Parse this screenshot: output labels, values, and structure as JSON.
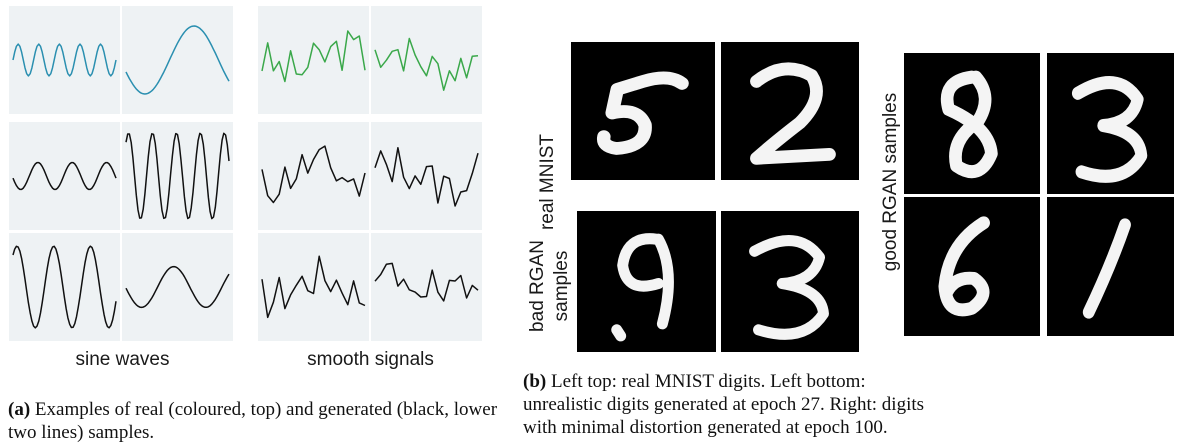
{
  "figure_a": {
    "group_labels": [
      "sine waves",
      "smooth signals"
    ],
    "colors": {
      "sine_real": "#2a8fb0",
      "smooth_real": "#3aa84a",
      "generated": "#111111",
      "panel_bg": "#eef2f4"
    },
    "panels": [
      {
        "name": "sine-real-1",
        "kind": "sine",
        "freq": 5,
        "amp": 0.35,
        "phase": 0.0,
        "color": "#2a8fb0"
      },
      {
        "name": "sine-real-2",
        "kind": "sine",
        "freq": 1.05,
        "amp": 0.75,
        "phase": 3.5,
        "color": "#2a8fb0"
      },
      {
        "name": "smooth-real-1",
        "kind": "smooth",
        "seed": 3,
        "color": "#3aa84a"
      },
      {
        "name": "smooth-real-2",
        "kind": "smooth",
        "seed": 7,
        "color": "#3aa84a"
      },
      {
        "name": "sine-gen-1",
        "kind": "sine",
        "freq": 3,
        "amp": 0.3,
        "phase": 3.3,
        "color": "#111111"
      },
      {
        "name": "sine-gen-2",
        "kind": "sine",
        "freq": 4.3,
        "amp": 0.95,
        "phase": 0.9,
        "color": "#111111"
      },
      {
        "name": "smooth-gen-1",
        "kind": "smooth",
        "seed": 11,
        "color": "#111111"
      },
      {
        "name": "smooth-gen-2",
        "kind": "smooth",
        "seed": 13,
        "color": "#111111"
      },
      {
        "name": "sine-gen-3",
        "kind": "sine",
        "freq": 2.8,
        "amp": 0.9,
        "phase": 0.9,
        "color": "#111111"
      },
      {
        "name": "sine-gen-4",
        "kind": "sine",
        "freq": 1.6,
        "amp": 0.45,
        "phase": 3.2,
        "color": "#111111"
      },
      {
        "name": "smooth-gen-3",
        "kind": "smooth",
        "seed": 17,
        "color": "#111111"
      },
      {
        "name": "smooth-gen-4",
        "kind": "smooth",
        "seed": 19,
        "color": "#111111"
      }
    ],
    "caption_label": "(a)",
    "caption_text": "Examples of real (coloured, top) and generated (black, lower two lines) samples."
  },
  "figure_b": {
    "row_labels": {
      "real": "real MNIST",
      "bad_line1": "bad RGAN",
      "bad_line2": "samples",
      "good": "good RGAN samples"
    },
    "digits": [
      {
        "name": "real-digit-5",
        "digit": "5"
      },
      {
        "name": "real-digit-2",
        "digit": "2"
      },
      {
        "name": "bad-digit-9",
        "digit": "9"
      },
      {
        "name": "bad-digit-3",
        "digit": "3"
      },
      {
        "name": "good-digit-8",
        "digit": "8"
      },
      {
        "name": "good-digit-3",
        "digit": "3"
      },
      {
        "name": "good-digit-6",
        "digit": "6"
      },
      {
        "name": "good-digit-1",
        "digit": "1"
      }
    ],
    "caption_label": "(b)",
    "caption_text": "Left top: real MNIST digits. Left bottom: unrealistic digits generated at epoch 27. Right: digits with minimal distortion generated at epoch 100."
  }
}
